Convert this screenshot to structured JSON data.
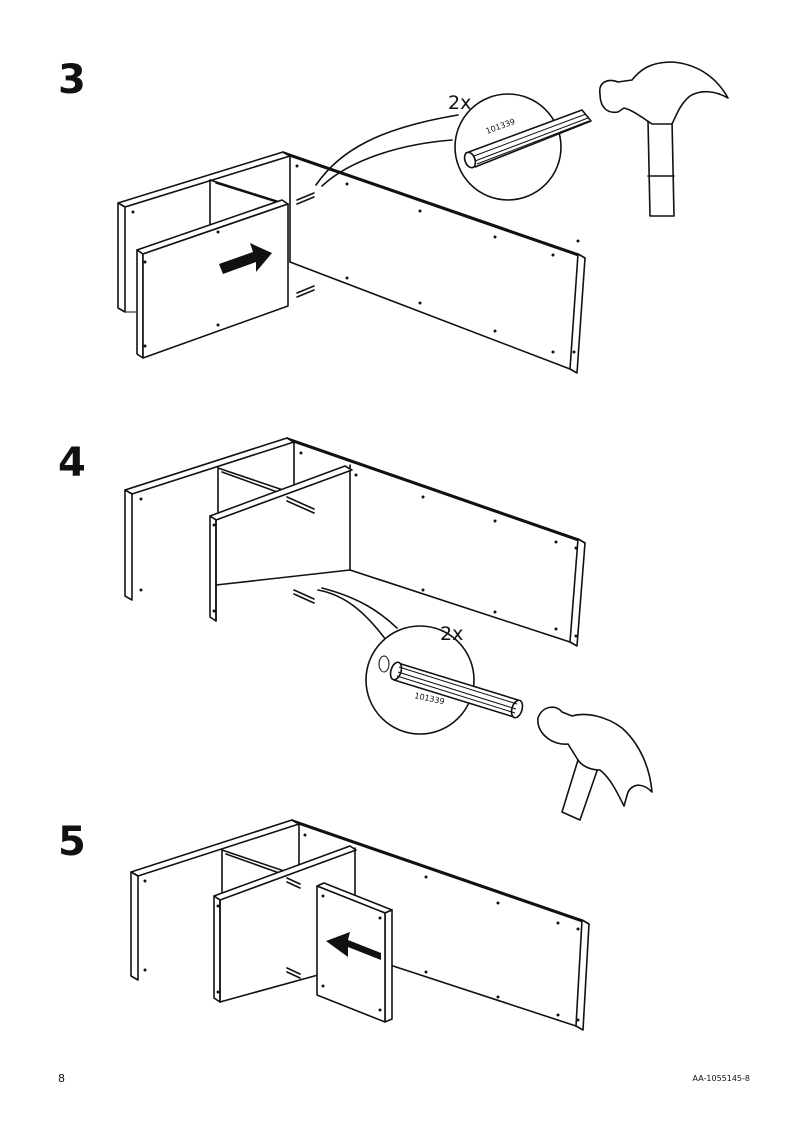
{
  "steps": [
    {
      "number": "3",
      "quantity": "2x",
      "part_number": "101339",
      "arrow_direction": "right"
    },
    {
      "number": "4",
      "quantity": "2x",
      "part_number": "101339"
    },
    {
      "number": "5",
      "arrow_direction": "left"
    }
  ],
  "footer": {
    "page_number": "8",
    "document_code": "AA-1055145-8"
  },
  "icons": [
    "dowel-icon",
    "hammer-icon",
    "push-arrow-icon"
  ]
}
